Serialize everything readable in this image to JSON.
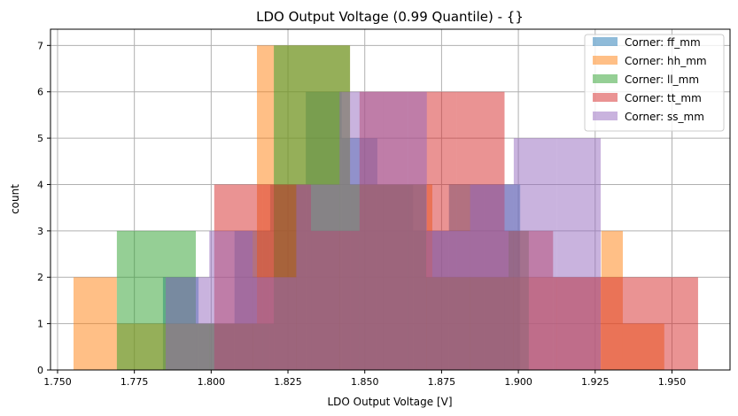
{
  "chart_data": {
    "type": "histogram",
    "title": "LDO Output Voltage (0.99 Quantile) - {}",
    "xlabel": "LDO Output Voltage [V]",
    "ylabel": "count",
    "xlim": [
      1.7477,
      1.9689
    ],
    "ylim": [
      0,
      7.35
    ],
    "xticks": [
      "1.750",
      "1.775",
      "1.800",
      "1.825",
      "1.850",
      "1.875",
      "1.900",
      "1.925",
      "1.950"
    ],
    "yticks": [
      "0",
      "1",
      "2",
      "3",
      "4",
      "5",
      "6",
      "7"
    ],
    "grid": true,
    "legend_position": "top-right",
    "alpha": 0.5,
    "series": [
      {
        "name": "Corner: ff_mm",
        "color": "#1f77b4",
        "edges": [
          1.7843,
          1.7959,
          1.8076,
          1.8192,
          1.8308,
          1.8425,
          1.8541,
          1.8657,
          1.8774,
          1.889,
          1.9006
        ],
        "counts": [
          2,
          1,
          3,
          4,
          6,
          5,
          4,
          3,
          4,
          4
        ]
      },
      {
        "name": "Corner: hh_mm",
        "color": "#ff7f0e",
        "edges": [
          1.7552,
          1.7693,
          1.7852,
          1.8149,
          1.8204,
          1.8452,
          1.856,
          1.872,
          1.8951,
          1.927,
          1.934,
          1.9475
        ],
        "counts": [
          2,
          1,
          1,
          7,
          7,
          4,
          4,
          2,
          2,
          3,
          1
        ]
      },
      {
        "name": "Corner: ll_mm",
        "color": "#2ca02c",
        "edges": [
          1.7693,
          1.795,
          1.8204,
          1.8452,
          1.87,
          1.8968,
          1.9034
        ],
        "counts": [
          3,
          1,
          7,
          4,
          2,
          3
        ]
      },
      {
        "name": "Corner: tt_mm",
        "color": "#d62728",
        "edges": [
          1.801,
          1.8168,
          1.8325,
          1.8483,
          1.864,
          1.8798,
          1.8955,
          1.9113,
          1.927,
          1.9428,
          1.9585
        ],
        "counts": [
          4,
          4,
          3,
          6,
          6,
          6,
          3,
          2,
          2,
          2
        ]
      },
      {
        "name": "Corner: ss_mm",
        "color": "#9467bd",
        "edges": [
          1.7852,
          1.7994,
          1.8135,
          1.8277,
          1.8418,
          1.856,
          1.8702,
          1.8843,
          1.8985,
          1.9126,
          1.9268
        ],
        "counts": [
          2,
          3,
          2,
          4,
          6,
          6,
          3,
          4,
          5,
          5
        ]
      }
    ]
  }
}
